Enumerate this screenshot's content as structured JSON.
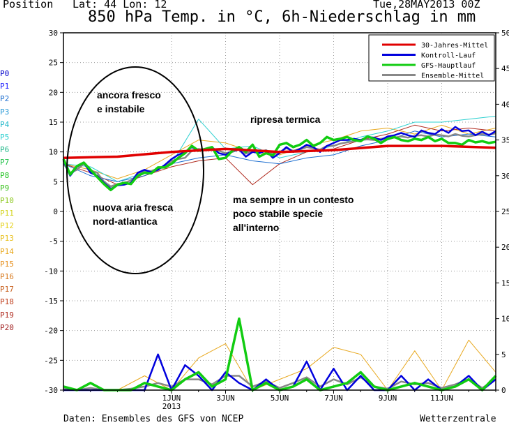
{
  "header": {
    "position": "Position",
    "latlon": "Lat: 44 Lon: 12",
    "date": "Tue,28MAY2013 00Z",
    "title": "850 hPa Temp. in °C, 6h-Niederschlag in mm"
  },
  "footer": {
    "left": "Daten: Ensembles des GFS von NCEP",
    "right": "Wetterzentrale"
  },
  "member_labels": [
    {
      "label": "P0",
      "color": "#0000cc"
    },
    {
      "label": "P1",
      "color": "#1a1aff"
    },
    {
      "label": "P2",
      "color": "#1e6fd0"
    },
    {
      "label": "P3",
      "color": "#2a9ad6"
    },
    {
      "label": "P4",
      "color": "#21b7c9"
    },
    {
      "label": "P5",
      "color": "#2bd0d0"
    },
    {
      "label": "P6",
      "color": "#22b88a"
    },
    {
      "label": "P7",
      "color": "#22c24a"
    },
    {
      "label": "P8",
      "color": "#22c422"
    },
    {
      "label": "P9",
      "color": "#3ac21e"
    },
    {
      "label": "P10",
      "color": "#8cc81e"
    },
    {
      "label": "P11",
      "color": "#d4d41e"
    },
    {
      "label": "P12",
      "color": "#e6d21e"
    },
    {
      "label": "P13",
      "color": "#e8c01e"
    },
    {
      "label": "P14",
      "color": "#e8a81e"
    },
    {
      "label": "P15",
      "color": "#e6901e"
    },
    {
      "label": "P16",
      "color": "#d87a1e"
    },
    {
      "label": "P17",
      "color": "#c8601e"
    },
    {
      "label": "P18",
      "color": "#c0401e"
    },
    {
      "label": "P19",
      "color": "#b02a1e"
    },
    {
      "label": "P20",
      "color": "#a02020"
    }
  ],
  "annotations": [
    {
      "text": "ancora fresco",
      "anchor": "ellipse-top"
    },
    {
      "text": "e instabile",
      "anchor": "ellipse-top"
    },
    {
      "text": "nuova aria fresca",
      "anchor": "ellipse-bottom"
    },
    {
      "text": "nord-atlantica",
      "anchor": "ellipse-bottom"
    },
    {
      "text": "ripresa termica",
      "anchor": "upper-middle"
    },
    {
      "text": "ma sempre in un contesto",
      "anchor": "middle"
    },
    {
      "text": "poco stabile specie",
      "anchor": "middle"
    },
    {
      "text": "all'interno",
      "anchor": "middle"
    }
  ],
  "chart_data": {
    "type": "line",
    "x_unit": "hours from 28MAY2013 00Z",
    "x_range": [
      0,
      384
    ],
    "x_ticks": [
      {
        "hour": 96,
        "label": "1JUN",
        "label2": "2013"
      },
      {
        "hour": 144,
        "label": "3JUN"
      },
      {
        "hour": 192,
        "label": "5JUN"
      },
      {
        "hour": 240,
        "label": "7JUN"
      },
      {
        "hour": 288,
        "label": "9JUN"
      },
      {
        "hour": 336,
        "label": "11JUN"
      }
    ],
    "y_left": {
      "range": [
        -30,
        30
      ],
      "ticks": [
        -30,
        -25,
        -20,
        -15,
        -10,
        -5,
        0,
        5,
        10,
        15,
        20,
        25,
        30
      ]
    },
    "y_right": {
      "range": [
        0,
        50
      ],
      "ticks": [
        0,
        5,
        10,
        15,
        20,
        25,
        30,
        35,
        40,
        45,
        50
      ]
    },
    "grid": true,
    "legend_position": "top-right",
    "legend": [
      {
        "name": "30-Jahres-Mittel",
        "color": "#e00000"
      },
      {
        "name": "Kontroll-Lauf",
        "color": "#0000dd"
      },
      {
        "name": "GFS-Hauptlauf",
        "color": "#11cc11"
      },
      {
        "name": "Ensemble-Mittel",
        "color": "#888888"
      }
    ],
    "temperature_series": [
      {
        "name": "30-Jahres-Mittel",
        "x": [
          0,
          48,
          96,
          144,
          192,
          240,
          288,
          336,
          384
        ],
        "y": [
          9.0,
          9.2,
          10.0,
          10.5,
          10.0,
          10.3,
          11.0,
          11.0,
          10.7
        ]
      },
      {
        "name": "Ensemble-Mittel",
        "x": [
          0,
          6,
          12,
          18,
          24,
          30,
          36,
          42,
          48,
          54,
          60,
          66,
          72,
          78,
          84,
          90,
          96,
          102,
          108,
          114,
          120,
          126,
          132,
          138,
          144,
          150,
          156,
          162,
          168,
          174,
          180,
          186,
          192,
          198,
          204,
          210,
          216,
          222,
          228,
          234,
          240,
          246,
          252,
          258,
          264,
          270,
          276,
          282,
          288,
          294,
          300,
          306,
          312,
          318,
          324,
          330,
          336,
          342,
          348,
          354,
          360,
          366,
          372,
          378,
          384
        ],
        "y": [
          8.0,
          6.5,
          7.0,
          8.0,
          6.8,
          6.5,
          5.0,
          4.2,
          4.6,
          4.8,
          5.2,
          6.2,
          6.8,
          6.8,
          7.2,
          7.5,
          8.5,
          8.8,
          9.0,
          10.2,
          10.5,
          10.3,
          10.6,
          10.2,
          9.8,
          10.0,
          10.4,
          9.7,
          10.2,
          10.0,
          10.3,
          9.6,
          10.0,
          10.6,
          10.2,
          10.4,
          10.8,
          10.6,
          10.4,
          11.0,
          11.0,
          11.4,
          11.6,
          11.8,
          12.0,
          12.1,
          12.0,
          12.2,
          12.3,
          12.4,
          12.6,
          12.4,
          12.7,
          12.8,
          12.6,
          12.9,
          12.8,
          12.6,
          13.0,
          12.7,
          12.6,
          12.8,
          13.0,
          12.9,
          13.1
        ]
      },
      {
        "name": "Kontroll-Lauf",
        "x": [
          0,
          6,
          12,
          18,
          24,
          30,
          36,
          42,
          48,
          54,
          60,
          66,
          72,
          78,
          84,
          90,
          96,
          102,
          108,
          114,
          120,
          126,
          132,
          138,
          144,
          150,
          156,
          162,
          168,
          174,
          180,
          186,
          192,
          198,
          204,
          210,
          216,
          222,
          228,
          234,
          240,
          246,
          252,
          258,
          264,
          270,
          276,
          282,
          288,
          294,
          300,
          306,
          312,
          318,
          324,
          330,
          336,
          342,
          348,
          354,
          360,
          366,
          372,
          378,
          384
        ],
        "y": [
          8.5,
          6.0,
          7.5,
          8.2,
          6.5,
          6.0,
          4.8,
          3.8,
          4.4,
          4.5,
          4.8,
          6.5,
          7.0,
          6.6,
          7.0,
          7.8,
          8.8,
          9.5,
          10.0,
          10.8,
          10.2,
          10.5,
          10.8,
          9.8,
          9.5,
          10.2,
          10.4,
          9.2,
          10.0,
          9.8,
          10.2,
          9.0,
          9.8,
          10.8,
          10.0,
          10.5,
          11.2,
          10.8,
          10.0,
          11.0,
          11.5,
          12.0,
          12.0,
          12.2,
          12.0,
          12.5,
          12.4,
          12.0,
          12.6,
          12.8,
          13.2,
          12.8,
          12.5,
          13.6,
          13.2,
          13.0,
          13.8,
          13.2,
          14.2,
          13.5,
          13.6,
          12.8,
          13.4,
          12.8,
          13.5
        ]
      },
      {
        "name": "GFS-Hauptlauf",
        "x": [
          0,
          6,
          12,
          18,
          24,
          30,
          36,
          42,
          48,
          54,
          60,
          66,
          72,
          78,
          84,
          90,
          96,
          102,
          108,
          114,
          120,
          126,
          132,
          138,
          144,
          150,
          156,
          162,
          168,
          174,
          180,
          186,
          192,
          198,
          204,
          210,
          216,
          222,
          228,
          234,
          240,
          246,
          252,
          258,
          264,
          270,
          276,
          282,
          288,
          294,
          300,
          306,
          312,
          318,
          324,
          330,
          336,
          342,
          348,
          354,
          360,
          366,
          372,
          378,
          384
        ],
        "y": [
          8.8,
          6.2,
          7.6,
          8.2,
          7.0,
          5.8,
          4.6,
          3.6,
          4.5,
          4.8,
          4.6,
          6.0,
          6.5,
          6.4,
          7.4,
          7.4,
          8.0,
          9.0,
          9.8,
          11.0,
          10.2,
          10.5,
          10.8,
          8.8,
          9.0,
          10.2,
          10.8,
          10.0,
          11.2,
          9.2,
          9.8,
          9.4,
          11.2,
          11.5,
          10.8,
          11.2,
          12.0,
          11.0,
          11.5,
          12.5,
          12.0,
          12.2,
          12.5,
          12.0,
          11.8,
          12.6,
          12.2,
          11.5,
          12.2,
          12.5,
          12.0,
          11.8,
          12.2,
          12.0,
          12.5,
          11.8,
          12.2,
          11.5,
          11.5,
          11.2,
          12.0,
          11.6,
          11.8,
          11.5,
          11.7
        ]
      },
      {
        "name": "P14",
        "x": [
          0,
          24,
          48,
          72,
          96,
          120,
          144,
          168,
          192,
          216,
          240,
          264,
          288,
          312,
          336,
          360,
          384
        ],
        "y": [
          8.0,
          7.0,
          5.5,
          7.0,
          9.5,
          12.0,
          11.5,
          10.0,
          9.5,
          11.0,
          12.0,
          13.5,
          14.0,
          13.0,
          14.5,
          13.0,
          14.0
        ]
      },
      {
        "name": "P5",
        "x": [
          0,
          24,
          48,
          72,
          96,
          120,
          144,
          168,
          192,
          216,
          240,
          264,
          288,
          312,
          336,
          360,
          384
        ],
        "y": [
          8.0,
          7.5,
          5.0,
          6.5,
          8.0,
          15.5,
          10.5,
          11.0,
          9.0,
          10.0,
          11.0,
          12.5,
          13.5,
          15.0,
          15.0,
          15.5,
          16.0
        ]
      },
      {
        "name": "P19",
        "x": [
          0,
          24,
          48,
          72,
          96,
          120,
          144,
          168,
          192,
          216,
          240,
          264,
          288,
          312,
          336,
          360,
          384
        ],
        "y": [
          8.0,
          6.5,
          4.5,
          6.0,
          7.5,
          8.5,
          9.0,
          4.5,
          8.0,
          10.0,
          10.5,
          12.0,
          13.0,
          14.5,
          13.5,
          14.0,
          13.5
        ]
      },
      {
        "name": "P2",
        "x": [
          0,
          24,
          48,
          72,
          96,
          120,
          144,
          168,
          192,
          216,
          240,
          264,
          288,
          312,
          336,
          360,
          384
        ],
        "y": [
          8.0,
          6.0,
          5.0,
          6.0,
          8.0,
          9.0,
          9.5,
          8.5,
          8.0,
          9.0,
          9.5,
          11.0,
          12.0,
          13.5,
          12.5,
          13.0,
          12.5
        ]
      }
    ],
    "precip_series": [
      {
        "name": "GFS-Hauptlauf",
        "x": [
          0,
          12,
          24,
          36,
          48,
          60,
          72,
          84,
          96,
          108,
          120,
          132,
          144,
          156,
          168,
          180,
          192,
          204,
          216,
          228,
          240,
          252,
          264,
          276,
          288,
          300,
          312,
          324,
          336,
          348,
          360,
          372,
          384
        ],
        "y": [
          0.5,
          0,
          1.0,
          0,
          0,
          0,
          1.0,
          0.5,
          0,
          1.5,
          2.5,
          0.5,
          1.5,
          10.0,
          0,
          1.0,
          0,
          0.5,
          1.5,
          0,
          0.5,
          1.0,
          2.5,
          0.5,
          0,
          0.5,
          1.0,
          0.5,
          0,
          0.5,
          1.5,
          0,
          2.0
        ]
      },
      {
        "name": "Kontroll-Lauf",
        "x": [
          0,
          12,
          24,
          36,
          48,
          60,
          72,
          84,
          96,
          108,
          120,
          132,
          144,
          156,
          168,
          180,
          192,
          204,
          216,
          228,
          240,
          252,
          264,
          276,
          288,
          300,
          312,
          324,
          336,
          348,
          360,
          372,
          384
        ],
        "y": [
          0,
          0,
          0,
          0,
          0,
          0,
          0,
          5.0,
          0,
          3.5,
          2.0,
          0,
          2.5,
          1.0,
          0,
          1.5,
          0,
          0.5,
          4.0,
          0,
          3.0,
          0,
          2.0,
          0,
          0,
          2.0,
          0,
          1.5,
          0,
          0.5,
          2.0,
          0,
          1.5
        ]
      },
      {
        "name": "Ensemble-Mittel",
        "x": [
          0,
          12,
          24,
          36,
          48,
          60,
          72,
          84,
          96,
          108,
          120,
          132,
          144,
          156,
          168,
          180,
          192,
          204,
          216,
          228,
          240,
          252,
          264,
          276,
          288,
          300,
          312,
          324,
          336,
          348,
          360,
          372,
          384
        ],
        "y": [
          0.2,
          0,
          0.3,
          0,
          0,
          0.2,
          0.5,
          1.0,
          0.5,
          1.5,
          1.5,
          0.8,
          2.0,
          2.0,
          0.5,
          1.2,
          0.3,
          1.0,
          1.8,
          0.5,
          1.5,
          0.8,
          1.8,
          0.5,
          0.2,
          1.2,
          0.8,
          1.0,
          0.3,
          0.8,
          1.5,
          0.3,
          1.5
        ]
      },
      {
        "name": "P14",
        "x": [
          0,
          24,
          48,
          72,
          96,
          120,
          144,
          168,
          192,
          216,
          240,
          264,
          288,
          312,
          336,
          360,
          384
        ],
        "y": [
          0,
          0,
          0,
          2.0,
          0,
          4.5,
          6.5,
          0,
          1.5,
          3.0,
          6.0,
          5.0,
          0,
          5.5,
          0,
          7.0,
          2.5
        ]
      }
    ]
  }
}
